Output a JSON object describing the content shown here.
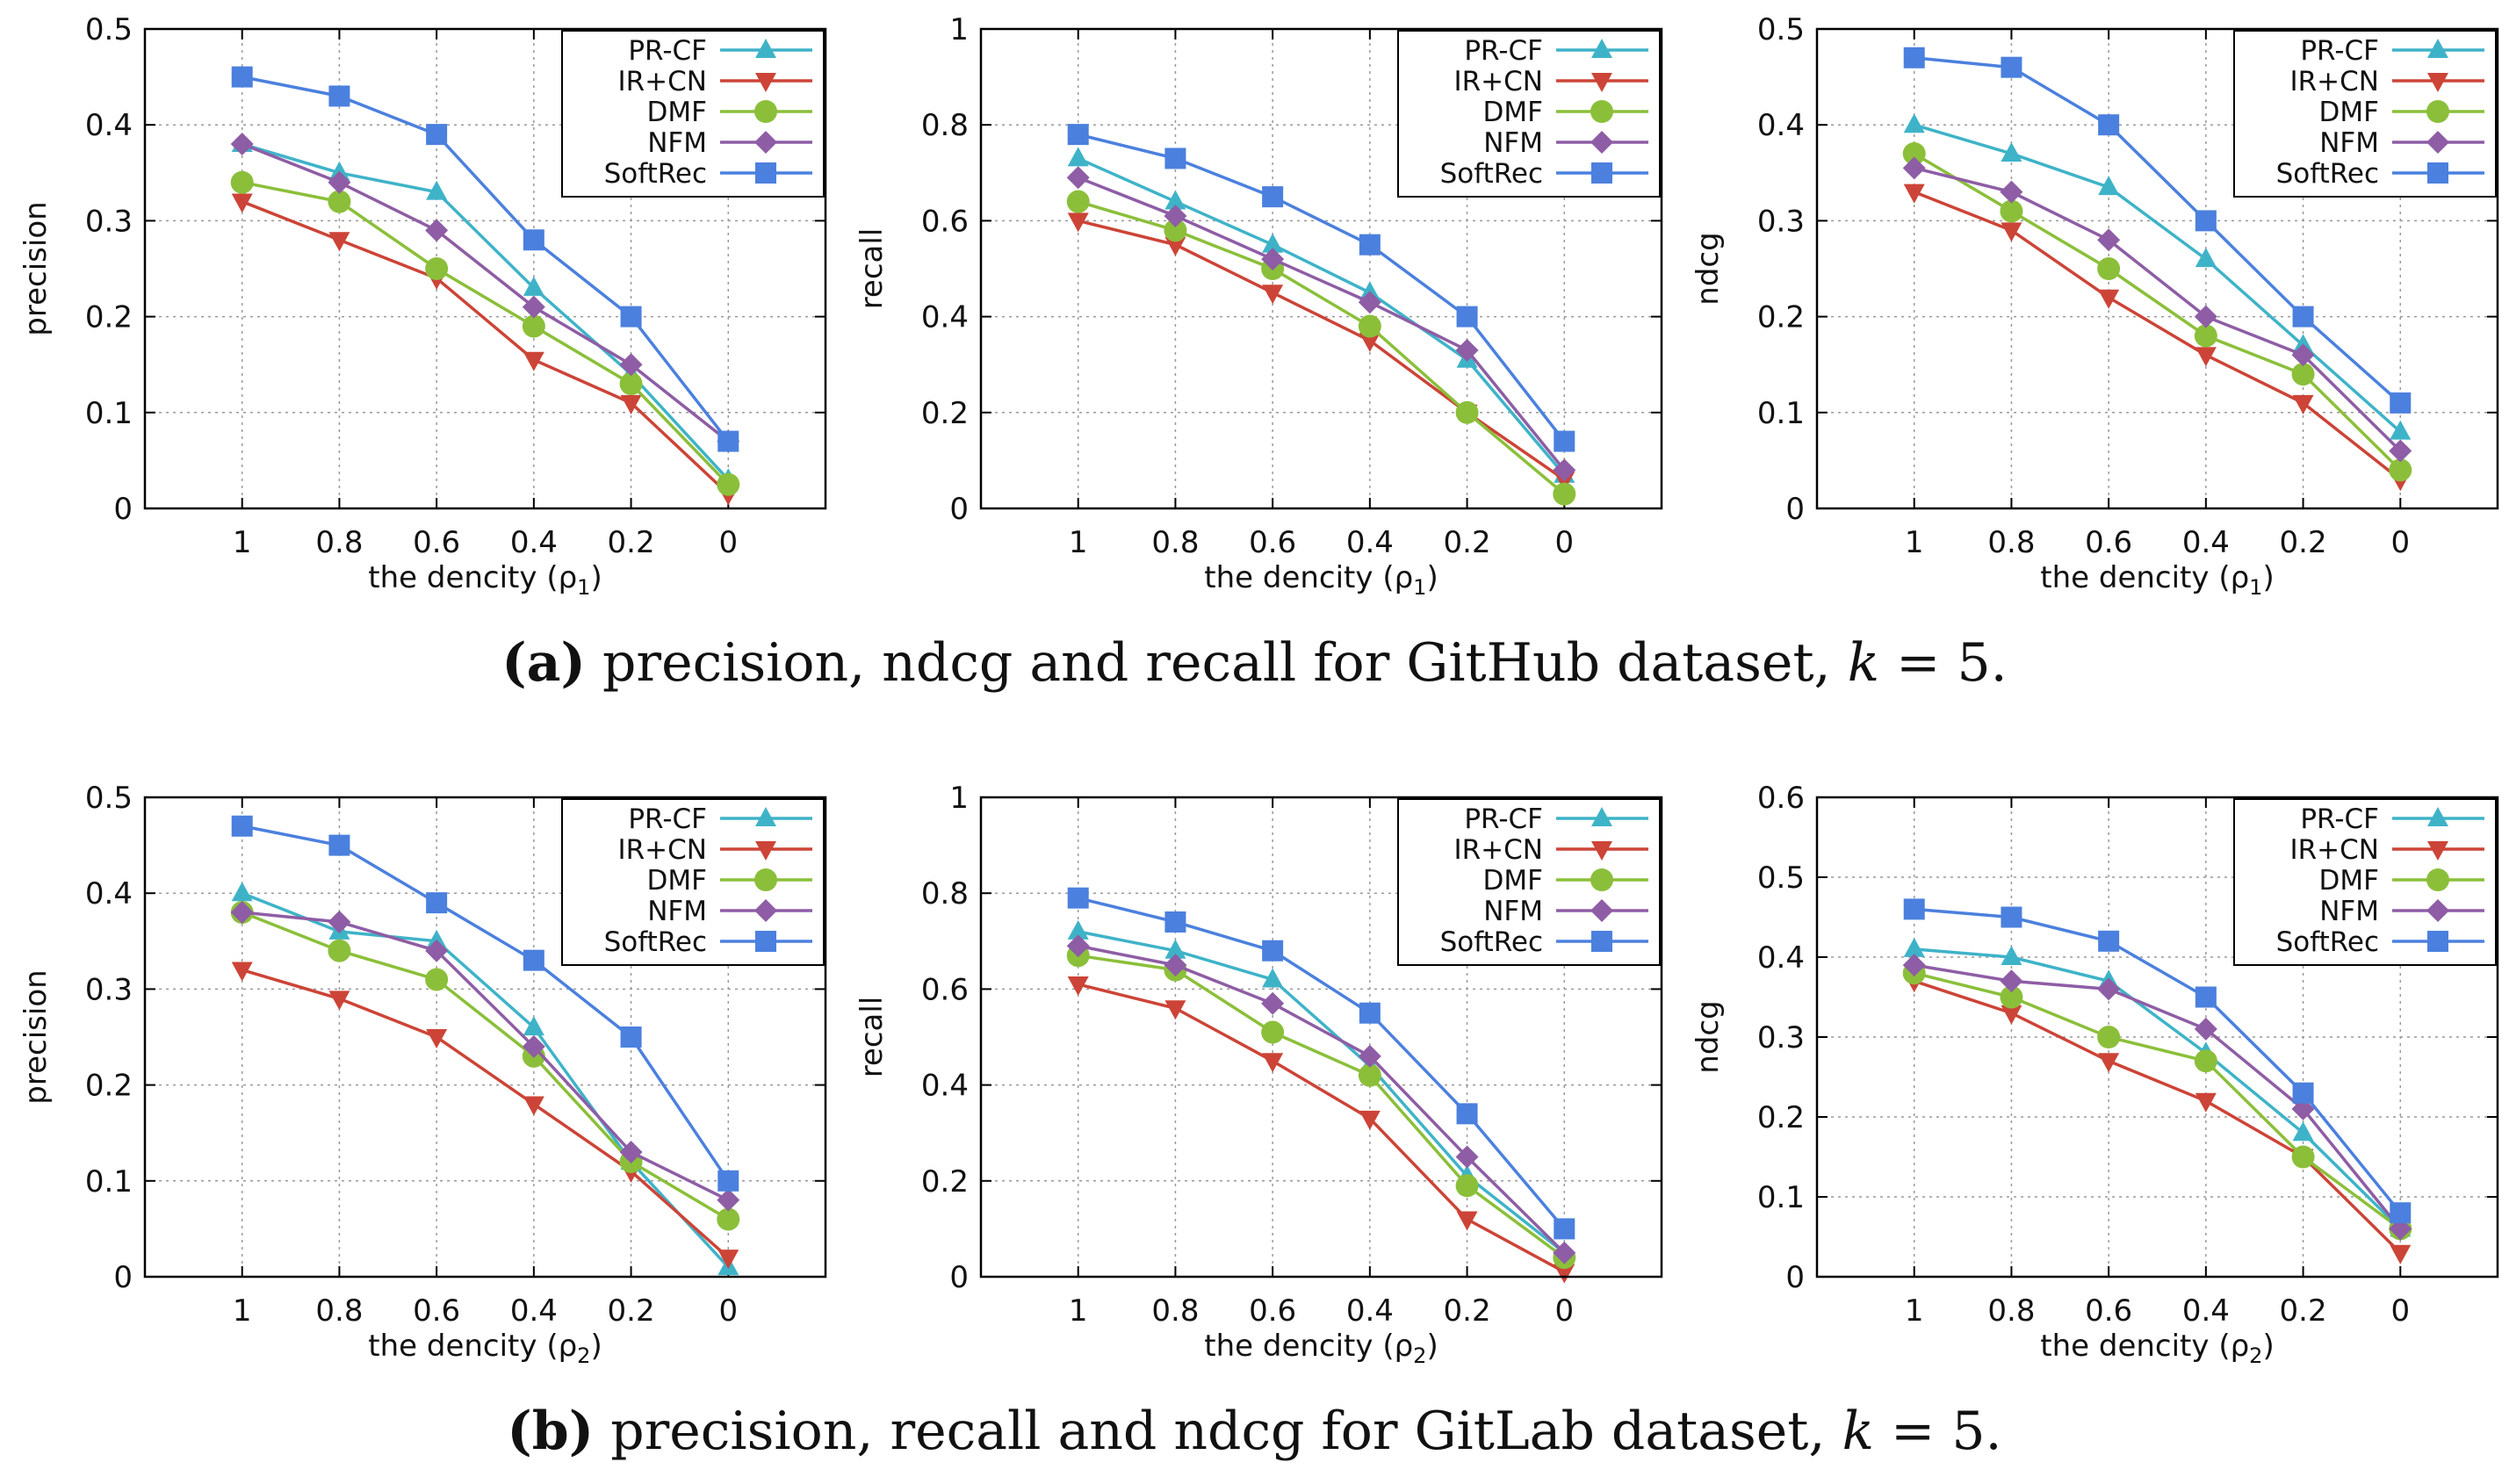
{
  "colors": {
    "PR-CF": "#3eb3c8",
    "IR+CN": "#cc4437",
    "DMF": "#8bbf3a",
    "NFM": "#8e5da5",
    "SoftRec": "#4b80de"
  },
  "captions": {
    "a": {
      "label": "(a)",
      "text": " precision, ndcg and recall for GitHub dataset, ",
      "k": "k",
      "tail": " = 5."
    },
    "b": {
      "label": "(b)",
      "text": " precision, recall and ndcg for GitLab dataset, ",
      "k": "k",
      "tail": " = 5."
    }
  },
  "chart_data": [
    {
      "type": "line",
      "ylabel": "precision",
      "xlabel": "the dencity (ρ",
      "xsub": "1",
      "xlabel_end": ")",
      "categories": [
        "1",
        "0.8",
        "0.6",
        "0.4",
        "0.2",
        "0"
      ],
      "ylim": [
        0,
        0.5
      ],
      "yticks": [
        "0",
        "0.1",
        "0.2",
        "0.3",
        "0.4",
        "0.5"
      ],
      "grid": true,
      "legend": "top-right",
      "series": [
        {
          "name": "PR-CF",
          "values": [
            0.38,
            0.35,
            0.33,
            0.23,
            0.14,
            0.03
          ]
        },
        {
          "name": "IR+CN",
          "values": [
            0.32,
            0.28,
            0.24,
            0.155,
            0.11,
            0.015
          ]
        },
        {
          "name": "DMF",
          "values": [
            0.34,
            0.32,
            0.25,
            0.19,
            0.13,
            0.025
          ]
        },
        {
          "name": "NFM",
          "values": [
            0.38,
            0.34,
            0.29,
            0.21,
            0.15,
            0.07
          ]
        },
        {
          "name": "SoftRec",
          "values": [
            0.45,
            0.43,
            0.39,
            0.28,
            0.2,
            0.07
          ]
        }
      ]
    },
    {
      "type": "line",
      "ylabel": "recall",
      "xlabel": "the dencity (ρ",
      "xsub": "1",
      "xlabel_end": ")",
      "categories": [
        "1",
        "0.8",
        "0.6",
        "0.4",
        "0.2",
        "0"
      ],
      "ylim": [
        0,
        1
      ],
      "yticks": [
        "0",
        "0.2",
        "0.4",
        "0.6",
        "0.8",
        "1"
      ],
      "grid": true,
      "legend": "top-right",
      "series": [
        {
          "name": "PR-CF",
          "values": [
            0.73,
            0.64,
            0.55,
            0.45,
            0.31,
            0.07
          ]
        },
        {
          "name": "IR+CN",
          "values": [
            0.6,
            0.55,
            0.45,
            0.35,
            0.2,
            0.06
          ]
        },
        {
          "name": "DMF",
          "values": [
            0.64,
            0.58,
            0.5,
            0.38,
            0.2,
            0.03
          ]
        },
        {
          "name": "NFM",
          "values": [
            0.69,
            0.61,
            0.52,
            0.43,
            0.33,
            0.08
          ]
        },
        {
          "name": "SoftRec",
          "values": [
            0.78,
            0.73,
            0.65,
            0.55,
            0.4,
            0.14
          ]
        }
      ]
    },
    {
      "type": "line",
      "ylabel": "ndcg",
      "xlabel": "the dencity (ρ",
      "xsub": "1",
      "xlabel_end": ")",
      "categories": [
        "1",
        "0.8",
        "0.6",
        "0.4",
        "0.2",
        "0"
      ],
      "ylim": [
        0,
        0.5
      ],
      "yticks": [
        "0",
        "0.1",
        "0.2",
        "0.3",
        "0.4",
        "0.5"
      ],
      "grid": true,
      "legend": "top-right",
      "series": [
        {
          "name": "PR-CF",
          "values": [
            0.4,
            0.37,
            0.335,
            0.26,
            0.17,
            0.08
          ]
        },
        {
          "name": "IR+CN",
          "values": [
            0.33,
            0.29,
            0.22,
            0.16,
            0.11,
            0.03
          ]
        },
        {
          "name": "DMF",
          "values": [
            0.37,
            0.31,
            0.25,
            0.18,
            0.14,
            0.04
          ]
        },
        {
          "name": "NFM",
          "values": [
            0.355,
            0.33,
            0.28,
            0.2,
            0.16,
            0.06
          ]
        },
        {
          "name": "SoftRec",
          "values": [
            0.47,
            0.46,
            0.4,
            0.3,
            0.2,
            0.11
          ]
        }
      ]
    },
    {
      "type": "line",
      "ylabel": "precision",
      "xlabel": "the dencity (ρ",
      "xsub": "2",
      "xlabel_end": ")",
      "categories": [
        "1",
        "0.8",
        "0.6",
        "0.4",
        "0.2",
        "0"
      ],
      "ylim": [
        0,
        0.5
      ],
      "yticks": [
        "0",
        "0.1",
        "0.2",
        "0.3",
        "0.4",
        "0.5"
      ],
      "grid": true,
      "legend": "top-right",
      "series": [
        {
          "name": "PR-CF",
          "values": [
            0.4,
            0.36,
            0.35,
            0.26,
            0.12,
            0.01
          ]
        },
        {
          "name": "IR+CN",
          "values": [
            0.32,
            0.29,
            0.25,
            0.18,
            0.11,
            0.02
          ]
        },
        {
          "name": "DMF",
          "values": [
            0.38,
            0.34,
            0.31,
            0.23,
            0.12,
            0.06
          ]
        },
        {
          "name": "NFM",
          "values": [
            0.38,
            0.37,
            0.34,
            0.24,
            0.13,
            0.08
          ]
        },
        {
          "name": "SoftRec",
          "values": [
            0.47,
            0.45,
            0.39,
            0.33,
            0.25,
            0.1
          ]
        }
      ]
    },
    {
      "type": "line",
      "ylabel": "recall",
      "xlabel": "the dencity (ρ",
      "xsub": "2",
      "xlabel_end": ")",
      "categories": [
        "1",
        "0.8",
        "0.6",
        "0.4",
        "0.2",
        "0"
      ],
      "ylim": [
        0,
        1
      ],
      "yticks": [
        "0",
        "0.2",
        "0.4",
        "0.6",
        "0.8",
        "1"
      ],
      "grid": true,
      "legend": "top-right",
      "series": [
        {
          "name": "PR-CF",
          "values": [
            0.72,
            0.68,
            0.62,
            0.44,
            0.21,
            0.05
          ]
        },
        {
          "name": "IR+CN",
          "values": [
            0.61,
            0.56,
            0.45,
            0.33,
            0.12,
            0.01
          ]
        },
        {
          "name": "DMF",
          "values": [
            0.67,
            0.64,
            0.51,
            0.42,
            0.19,
            0.04
          ]
        },
        {
          "name": "NFM",
          "values": [
            0.69,
            0.65,
            0.57,
            0.46,
            0.25,
            0.05
          ]
        },
        {
          "name": "SoftRec",
          "values": [
            0.79,
            0.74,
            0.68,
            0.55,
            0.34,
            0.1
          ]
        }
      ]
    },
    {
      "type": "line",
      "ylabel": "ndcg",
      "xlabel": "the dencity (ρ",
      "xsub": "2",
      "xlabel_end": ")",
      "categories": [
        "1",
        "0.8",
        "0.6",
        "0.4",
        "0.2",
        "0"
      ],
      "ylim": [
        0,
        0.6
      ],
      "yticks": [
        "0",
        "0.1",
        "0.2",
        "0.3",
        "0.4",
        "0.5",
        "0.6"
      ],
      "grid": true,
      "legend": "top-right",
      "series": [
        {
          "name": "PR-CF",
          "values": [
            0.41,
            0.4,
            0.37,
            0.28,
            0.18,
            0.06
          ]
        },
        {
          "name": "IR+CN",
          "values": [
            0.37,
            0.33,
            0.27,
            0.22,
            0.15,
            0.03
          ]
        },
        {
          "name": "DMF",
          "values": [
            0.38,
            0.35,
            0.3,
            0.27,
            0.15,
            0.06
          ]
        },
        {
          "name": "NFM",
          "values": [
            0.39,
            0.37,
            0.36,
            0.31,
            0.21,
            0.06
          ]
        },
        {
          "name": "SoftRec",
          "values": [
            0.46,
            0.45,
            0.42,
            0.35,
            0.23,
            0.08
          ]
        }
      ]
    }
  ]
}
